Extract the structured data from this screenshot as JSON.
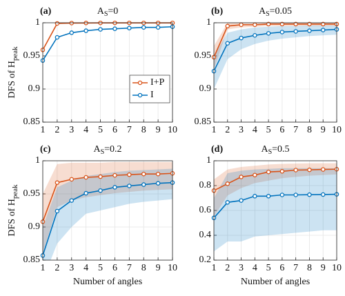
{
  "chart_data": [
    {
      "type": "line",
      "panel": "(a)",
      "title": "A",
      "title_sub": "S",
      "title_rest": "=0",
      "ylabel": "DFS  of  H",
      "ylabel_sub": "peak",
      "x": [
        1,
        2,
        3,
        4,
        5,
        6,
        7,
        8,
        9,
        10
      ],
      "xlim": [
        1,
        10
      ],
      "xticks": [
        1,
        2,
        3,
        4,
        5,
        6,
        7,
        8,
        9,
        10
      ],
      "ylim": [
        0.85,
        1
      ],
      "yticks": [
        0.85,
        0.9,
        0.95,
        1
      ],
      "grid": true,
      "legend": "center right",
      "series": [
        {
          "name": "I+P",
          "color": "#d95319",
          "values": [
            0.959,
            0.999,
            0.9995,
            0.9997,
            0.9998,
            0.9998,
            0.9998,
            0.9998,
            0.9998,
            0.9998
          ]
        },
        {
          "name": "I",
          "color": "#0072bd",
          "values": [
            0.943,
            0.978,
            0.985,
            0.988,
            0.99,
            0.991,
            0.992,
            0.993,
            0.993,
            0.994
          ]
        }
      ]
    },
    {
      "type": "line",
      "panel": "(b)",
      "title": "A",
      "title_sub": "S",
      "title_rest": "=0.05",
      "x": [
        1,
        2,
        3,
        4,
        5,
        6,
        7,
        8,
        9,
        10
      ],
      "xlim": [
        1,
        10
      ],
      "xticks": [
        1,
        2,
        3,
        4,
        5,
        6,
        7,
        8,
        9,
        10
      ],
      "ylim": [
        0.85,
        1
      ],
      "yticks": [
        0.85,
        0.9,
        0.95,
        1
      ],
      "grid": true,
      "series": [
        {
          "name": "I+P",
          "color": "#d95319",
          "values": [
            0.948,
            0.995,
            0.997,
            0.997,
            0.998,
            0.998,
            0.998,
            0.998,
            0.998,
            0.998
          ],
          "lower": [
            0.93,
            0.99,
            0.993,
            0.994,
            0.995,
            0.995,
            0.995,
            0.995,
            0.995,
            0.995
          ],
          "upper": [
            0.965,
            1,
            1,
            1,
            1,
            1,
            1,
            1,
            1,
            1
          ]
        },
        {
          "name": "I",
          "color": "#0072bd",
          "values": [
            0.927,
            0.969,
            0.977,
            0.981,
            0.984,
            0.986,
            0.987,
            0.988,
            0.989,
            0.99
          ],
          "lower": [
            0.9,
            0.945,
            0.96,
            0.968,
            0.973,
            0.976,
            0.978,
            0.98,
            0.981,
            0.982
          ],
          "upper": [
            0.95,
            0.985,
            0.99,
            0.993,
            0.994,
            0.995,
            0.995,
            0.996,
            0.996,
            0.996
          ]
        }
      ]
    },
    {
      "type": "line",
      "panel": "(c)",
      "title": "A",
      "title_sub": "S",
      "title_rest": "=0.2",
      "ylabel": "DFS  of  H",
      "ylabel_sub": "peak",
      "xlabel": "Number of angles",
      "x": [
        1,
        2,
        3,
        4,
        5,
        6,
        7,
        8,
        9,
        10
      ],
      "xlim": [
        1,
        10
      ],
      "xticks": [
        1,
        2,
        3,
        4,
        5,
        6,
        7,
        8,
        9,
        10
      ],
      "ylim": [
        0.85,
        1
      ],
      "yticks": [
        0.85,
        0.9,
        0.95,
        1
      ],
      "grid": true,
      "series": [
        {
          "name": "I+P",
          "color": "#d95319",
          "values": [
            0.908,
            0.967,
            0.972,
            0.975,
            0.976,
            0.978,
            0.979,
            0.98,
            0.98,
            0.981
          ],
          "lower": [
            0.86,
            0.93,
            0.94,
            0.945,
            0.948,
            0.951,
            0.953,
            0.955,
            0.956,
            0.957
          ],
          "upper": [
            0.95,
            0.995,
            0.997,
            0.997,
            0.997,
            0.998,
            0.998,
            0.998,
            0.998,
            0.998
          ]
        },
        {
          "name": "I",
          "color": "#0072bd",
          "values": [
            0.857,
            0.924,
            0.94,
            0.951,
            0.955,
            0.96,
            0.962,
            0.964,
            0.966,
            0.967
          ],
          "lower": [
            0.82,
            0.875,
            0.9,
            0.92,
            0.925,
            0.93,
            0.935,
            0.938,
            0.94,
            0.942
          ],
          "upper": [
            0.9,
            0.96,
            0.97,
            0.977,
            0.98,
            0.983,
            0.985,
            0.986,
            0.987,
            0.988
          ]
        }
      ]
    },
    {
      "type": "line",
      "panel": "(d)",
      "title": "A",
      "title_sub": "S",
      "title_rest": "=0.5",
      "xlabel": "Number of angles",
      "x": [
        1,
        2,
        3,
        4,
        5,
        6,
        7,
        8,
        9,
        10
      ],
      "xlim": [
        1,
        10
      ],
      "xticks": [
        1,
        2,
        3,
        4,
        5,
        6,
        7,
        8,
        9,
        10
      ],
      "ylim": [
        0.2,
        1
      ],
      "yticks": [
        0.2,
        0.4,
        0.6,
        0.8,
        1
      ],
      "grid": true,
      "series": [
        {
          "name": "I+P",
          "color": "#d95319",
          "values": [
            0.76,
            0.815,
            0.87,
            0.885,
            0.91,
            0.915,
            0.925,
            0.927,
            0.93,
            0.932
          ],
          "lower": [
            0.55,
            0.72,
            0.78,
            0.82,
            0.84,
            0.86,
            0.87,
            0.88,
            0.885,
            0.89
          ],
          "upper": [
            0.85,
            0.93,
            0.95,
            0.96,
            0.97,
            0.975,
            0.978,
            0.98,
            0.98,
            0.98
          ]
        },
        {
          "name": "I",
          "color": "#0072bd",
          "values": [
            0.54,
            0.665,
            0.68,
            0.715,
            0.715,
            0.725,
            0.725,
            0.727,
            0.728,
            0.73
          ],
          "lower": [
            0.27,
            0.35,
            0.35,
            0.39,
            0.4,
            0.41,
            0.42,
            0.43,
            0.44,
            0.44
          ],
          "upper": [
            0.7,
            0.9,
            0.92,
            0.93,
            0.935,
            0.94,
            0.94,
            0.94,
            0.94,
            0.94
          ]
        }
      ]
    }
  ]
}
